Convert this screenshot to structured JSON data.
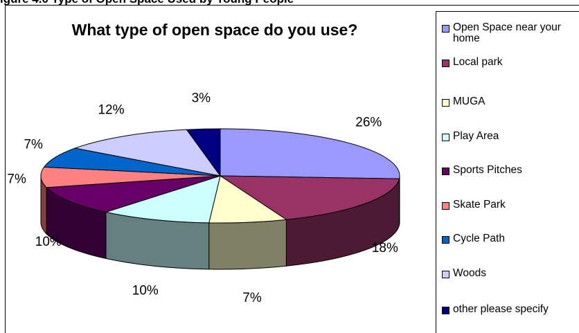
{
  "figure_caption": "igure 4.0 Type of Open Space Used by Young People",
  "chart_data": {
    "type": "pie",
    "title": "What type of open space do you use?",
    "legend_position": "right",
    "three_d": true,
    "slices": [
      {
        "label": "Open Space near your home",
        "value": 26,
        "display": "26%",
        "color": "#9999ff"
      },
      {
        "label": "Local park",
        "value": 18,
        "display": "18%",
        "color": "#993366"
      },
      {
        "label": "MUGA",
        "value": 7,
        "display": "7%",
        "color": "#ffffcc"
      },
      {
        "label": "Play Area",
        "value": 10,
        "display": "10%",
        "color": "#ccffff"
      },
      {
        "label": "Sports Pitches",
        "value": 10,
        "display": "10%",
        "color": "#660066"
      },
      {
        "label": "Skate Park",
        "value": 7,
        "display": "7%",
        "color": "#ff8080"
      },
      {
        "label": "Cycle Path",
        "value": 7,
        "display": "7%",
        "color": "#0066cc"
      },
      {
        "label": "Woods",
        "value": 12,
        "display": "12%",
        "color": "#ccccff"
      },
      {
        "label": "other please specify",
        "value": 3,
        "display": "3%",
        "color": "#000080"
      }
    ]
  }
}
